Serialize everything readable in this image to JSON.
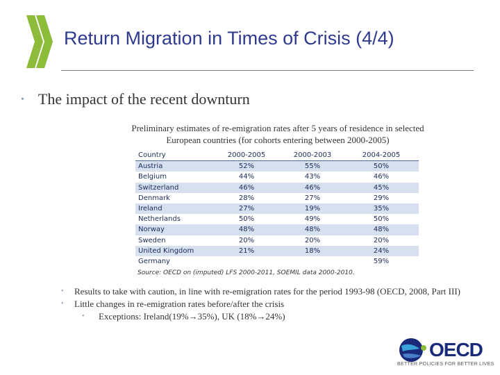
{
  "slide": {
    "title": "Return Migration in Times of Crisis (4/4)",
    "main_bullet": "The impact of the recent downturn",
    "caption_line1": "Preliminary estimates of re-emigration rates after 5 years of residence in selected",
    "caption_line2": "European countries (for cohorts entering between 2000-2005)",
    "source": "Source: OECD on (imputed) LFS 2000-2011, SOEMIL data 2000-2010.",
    "bullets": [
      "Results to take with caution, in line with re-emigration rates for the period 1993-98 (OECD, 2008, Part III)",
      "Little changes in re-emigration rates before/after the crisis"
    ],
    "sub_bullet": "Exceptions: Ireland(19%→35%), UK (18%→24%)"
  },
  "table": {
    "headers": [
      "Country",
      "2000-2005",
      "2000-2003",
      "2004-2005"
    ],
    "rows": [
      [
        "Austria",
        "52%",
        "55%",
        "50%"
      ],
      [
        "Belgium",
        "44%",
        "43%",
        "46%"
      ],
      [
        "Switzerland",
        "46%",
        "46%",
        "45%"
      ],
      [
        "Denmark",
        "28%",
        "27%",
        "29%"
      ],
      [
        "Ireland",
        "27%",
        "19%",
        "35%"
      ],
      [
        "Netherlands",
        "50%",
        "49%",
        "50%"
      ],
      [
        "Norway",
        "48%",
        "48%",
        "48%"
      ],
      [
        "Sweden",
        "20%",
        "20%",
        "20%"
      ],
      [
        "United Kingdom",
        "21%",
        "18%",
        "24%"
      ],
      [
        "Germany",
        "",
        "",
        "59%"
      ]
    ]
  },
  "logo": {
    "wordmark": "OECD",
    "tagline": "BETTER POLICIES FOR BETTER LIVES"
  },
  "colors": {
    "title": "#2f3a8f",
    "chevron": "#8dbb3a",
    "row_band": "#d6e0ee",
    "logo_blue": "#1a2a7a"
  }
}
